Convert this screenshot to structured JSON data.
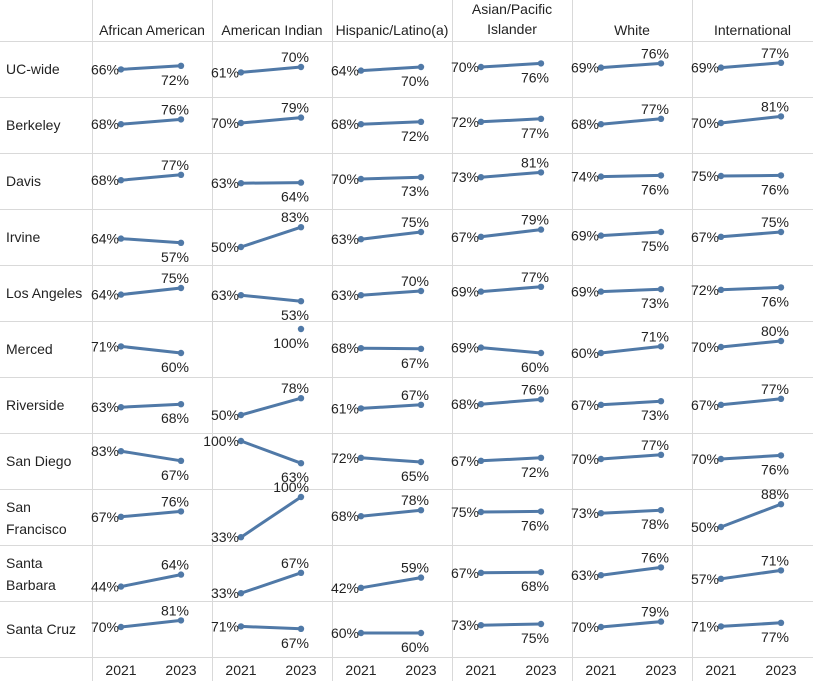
{
  "chart_data": {
    "type": "line",
    "title": "",
    "xlabel": "",
    "ylabel": "",
    "ylim": [
      0.3,
      1.0
    ],
    "x": [
      "2021",
      "2023"
    ],
    "columns": [
      "African American",
      "American Indian",
      "Hispanic/Latino(a)",
      "Asian/Pacific Islander",
      "White",
      "International"
    ],
    "rows": [
      "UC-wide",
      "Berkeley",
      "Davis",
      "Irvine",
      "Los Angeles",
      "Merced",
      "Riverside",
      "San Diego",
      "San Francisco",
      "Santa Barbara",
      "Santa Cruz"
    ],
    "values": [
      [
        [
          0.66,
          0.72
        ],
        [
          0.61,
          0.7
        ],
        [
          0.64,
          0.7
        ],
        [
          0.7,
          0.76
        ],
        [
          0.69,
          0.76
        ],
        [
          0.69,
          0.77
        ]
      ],
      [
        [
          0.68,
          0.76
        ],
        [
          0.7,
          0.79
        ],
        [
          0.68,
          0.72
        ],
        [
          0.72,
          0.77
        ],
        [
          0.68,
          0.77
        ],
        [
          0.7,
          0.81
        ]
      ],
      [
        [
          0.68,
          0.77
        ],
        [
          0.63,
          0.64
        ],
        [
          0.7,
          0.73
        ],
        [
          0.73,
          0.81
        ],
        [
          0.74,
          0.76
        ],
        [
          0.75,
          0.76
        ]
      ],
      [
        [
          0.64,
          0.57
        ],
        [
          0.5,
          0.83
        ],
        [
          0.63,
          0.75
        ],
        [
          0.67,
          0.79
        ],
        [
          0.69,
          0.75
        ],
        [
          0.67,
          0.75
        ]
      ],
      [
        [
          0.64,
          0.75
        ],
        [
          0.63,
          0.53
        ],
        [
          0.63,
          0.7
        ],
        [
          0.69,
          0.77
        ],
        [
          0.69,
          0.73
        ],
        [
          0.72,
          0.76
        ]
      ],
      [
        [
          0.71,
          0.6
        ],
        [
          null,
          1.0
        ],
        [
          0.68,
          0.67
        ],
        [
          0.69,
          0.6
        ],
        [
          0.6,
          0.71
        ],
        [
          0.7,
          0.8
        ]
      ],
      [
        [
          0.63,
          0.68
        ],
        [
          0.5,
          0.78
        ],
        [
          0.61,
          0.67
        ],
        [
          0.68,
          0.76
        ],
        [
          0.67,
          0.73
        ],
        [
          0.67,
          0.77
        ]
      ],
      [
        [
          0.83,
          0.67
        ],
        [
          1.0,
          0.63
        ],
        [
          0.72,
          0.65
        ],
        [
          0.67,
          0.72
        ],
        [
          0.7,
          0.77
        ],
        [
          0.7,
          0.76
        ]
      ],
      [
        [
          0.67,
          0.76
        ],
        [
          0.33,
          1.0
        ],
        [
          0.68,
          0.78
        ],
        [
          0.75,
          0.76
        ],
        [
          0.73,
          0.78
        ],
        [
          0.5,
          0.88
        ]
      ],
      [
        [
          0.44,
          0.64
        ],
        [
          0.33,
          0.67
        ],
        [
          0.42,
          0.59
        ],
        [
          0.67,
          0.68
        ],
        [
          0.63,
          0.76
        ],
        [
          0.57,
          0.71
        ]
      ],
      [
        [
          0.7,
          0.81
        ],
        [
          0.71,
          0.67
        ],
        [
          0.6,
          0.6
        ],
        [
          0.73,
          0.75
        ],
        [
          0.7,
          0.79
        ],
        [
          0.71,
          0.77
        ]
      ]
    ],
    "labels": [
      [
        [
          "66%",
          "72%"
        ],
        [
          "61%",
          "70%"
        ],
        [
          "64%",
          "70%"
        ],
        [
          "70%",
          "76%"
        ],
        [
          "69%",
          "76%"
        ],
        [
          "69%",
          "77%"
        ]
      ],
      [
        [
          "68%",
          "76%"
        ],
        [
          "70%",
          "79%"
        ],
        [
          "68%",
          "72%"
        ],
        [
          "72%",
          "77%"
        ],
        [
          "68%",
          "77%"
        ],
        [
          "70%",
          "81%"
        ]
      ],
      [
        [
          "68%",
          "77%"
        ],
        [
          "63%",
          "64%"
        ],
        [
          "70%",
          "73%"
        ],
        [
          "73%",
          "81%"
        ],
        [
          "74%",
          "76%"
        ],
        [
          "75%",
          "76%"
        ]
      ],
      [
        [
          "64%",
          "57%"
        ],
        [
          "50%",
          "83%"
        ],
        [
          "63%",
          "75%"
        ],
        [
          "67%",
          "79%"
        ],
        [
          "69%",
          "75%"
        ],
        [
          "67%",
          "75%"
        ]
      ],
      [
        [
          "64%",
          "75%"
        ],
        [
          "63%",
          "53%"
        ],
        [
          "63%",
          "70%"
        ],
        [
          "69%",
          "77%"
        ],
        [
          "69%",
          "73%"
        ],
        [
          "72%",
          "76%"
        ]
      ],
      [
        [
          "71%",
          "60%"
        ],
        [
          "",
          "100%"
        ],
        [
          "68%",
          "67%"
        ],
        [
          "69%",
          "60%"
        ],
        [
          "60%",
          "71%"
        ],
        [
          "70%",
          "80%"
        ]
      ],
      [
        [
          "63%",
          "68%"
        ],
        [
          "50%",
          "78%"
        ],
        [
          "61%",
          "67%"
        ],
        [
          "68%",
          "76%"
        ],
        [
          "67%",
          "73%"
        ],
        [
          "67%",
          "77%"
        ]
      ],
      [
        [
          "83%",
          "67%"
        ],
        [
          "100%",
          "63%"
        ],
        [
          "72%",
          "65%"
        ],
        [
          "67%",
          "72%"
        ],
        [
          "70%",
          "77%"
        ],
        [
          "70%",
          "76%"
        ]
      ],
      [
        [
          "67%",
          "76%"
        ],
        [
          "33%",
          "100%"
        ],
        [
          "68%",
          "78%"
        ],
        [
          "75%",
          "76%"
        ],
        [
          "73%",
          "78%"
        ],
        [
          "50%",
          "88%"
        ]
      ],
      [
        [
          "44%",
          "64%"
        ],
        [
          "33%",
          "67%"
        ],
        [
          "42%",
          "59%"
        ],
        [
          "67%",
          "68%"
        ],
        [
          "63%",
          "76%"
        ],
        [
          "57%",
          "71%"
        ]
      ],
      [
        [
          "70%",
          "81%"
        ],
        [
          "71%",
          "67%"
        ],
        [
          "60%",
          "60%"
        ],
        [
          "73%",
          "75%"
        ],
        [
          "70%",
          "79%"
        ],
        [
          "71%",
          "77%"
        ]
      ]
    ]
  },
  "colors": {
    "line": "#5079A7",
    "grid": "#D9D9D9",
    "text": "#222222"
  }
}
